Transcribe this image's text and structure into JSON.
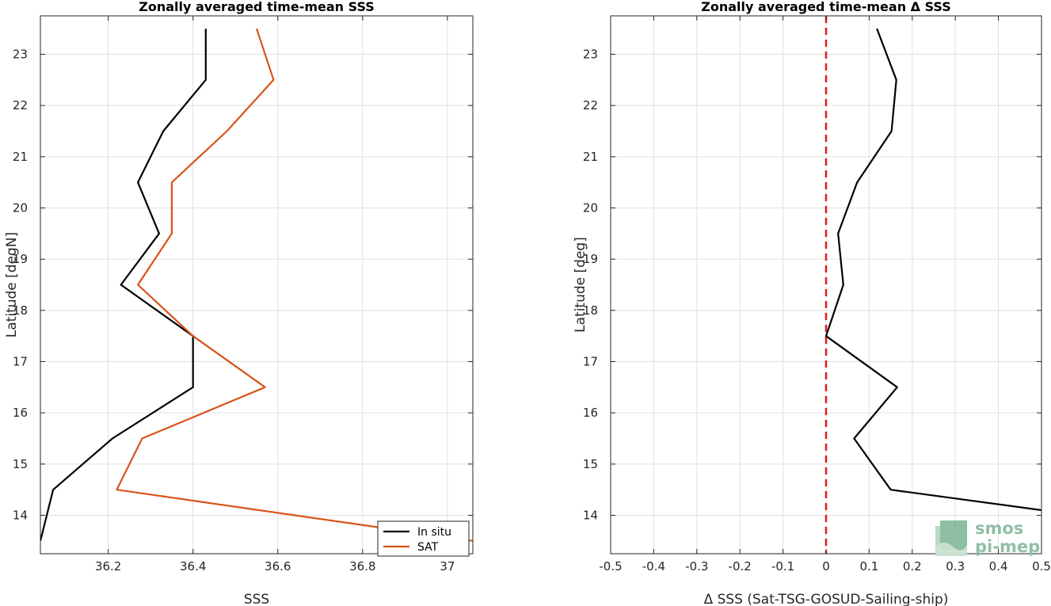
{
  "chart_data": [
    {
      "type": "line",
      "title": "Zonally averaged time-mean SSS",
      "xlabel": "SSS",
      "ylabel": "Latitude [degN]",
      "xlim": [
        36.04,
        37.06
      ],
      "ylim": [
        13.25,
        23.75
      ],
      "xticks": [
        36.2,
        36.4,
        36.6,
        36.8,
        37
      ],
      "xtick_labels": [
        "36.2",
        "36.4",
        "36.6",
        "36.8",
        "37"
      ],
      "yticks": [
        14,
        15,
        16,
        17,
        18,
        19,
        20,
        21,
        22,
        23
      ],
      "ytick_labels": [
        "14",
        "15",
        "16",
        "17",
        "18",
        "19",
        "20",
        "21",
        "22",
        "23"
      ],
      "grid": true,
      "legend": {
        "position": "bottom-right",
        "entries": [
          "In situ",
          "SAT"
        ]
      },
      "series": [
        {
          "name": "In situ",
          "color": "#000000",
          "x": [
            36.04,
            36.07,
            36.21,
            36.4,
            36.4,
            36.23,
            36.32,
            36.27,
            36.33,
            36.43,
            36.43
          ],
          "y": [
            13.5,
            14.5,
            15.5,
            16.5,
            17.5,
            18.5,
            19.5,
            20.5,
            21.5,
            22.5,
            23.5
          ]
        },
        {
          "name": "SAT",
          "color": "#d95319",
          "x": [
            37.06,
            36.22,
            36.28,
            36.57,
            36.4,
            36.27,
            36.35,
            36.35,
            36.48,
            36.59,
            36.55
          ],
          "y": [
            13.5,
            14.5,
            15.5,
            16.5,
            17.5,
            18.5,
            19.5,
            20.5,
            21.5,
            22.5,
            23.5
          ]
        }
      ]
    },
    {
      "type": "line",
      "title": "Zonally averaged time-mean Δ SSS",
      "xlabel": "Δ SSS (Sat-TSG-GOSUD-Sailing-ship)",
      "ylabel": "Latitude [deg]",
      "xlim": [
        -0.5,
        0.5
      ],
      "ylim": [
        13.25,
        23.75
      ],
      "xticks": [
        -0.5,
        -0.4,
        -0.3,
        -0.2,
        -0.1,
        0,
        0.1,
        0.2,
        0.3,
        0.4,
        0.5
      ],
      "xtick_labels": [
        "-0.5",
        "-0.4",
        "-0.3",
        "-0.2",
        "-0.1",
        "0",
        "0.1",
        "0.2",
        "0.3",
        "0.4",
        "0.5"
      ],
      "yticks": [
        14,
        15,
        16,
        17,
        18,
        19,
        20,
        21,
        22,
        23
      ],
      "ytick_labels": [
        "14",
        "15",
        "16",
        "17",
        "18",
        "19",
        "20",
        "21",
        "22",
        "23"
      ],
      "grid": true,
      "reference_line": {
        "x": 0,
        "color": "#e31a1c",
        "style": "dashed"
      },
      "series": [
        {
          "color": "#000000",
          "x": [
            0.5,
            0.15,
            0.065,
            0.165,
            0.0,
            0.04,
            0.028,
            0.072,
            0.152,
            0.163,
            0.118
          ],
          "y": [
            14.1,
            14.5,
            15.5,
            16.5,
            17.5,
            18.5,
            19.5,
            20.5,
            21.5,
            22.5,
            23.5
          ]
        }
      ]
    }
  ],
  "logo": {
    "line1": "smos",
    "line2": "pi-mep",
    "colors": [
      "#2e8b57",
      "#8fbfa5"
    ],
    "icon": "wave-block-icon"
  }
}
